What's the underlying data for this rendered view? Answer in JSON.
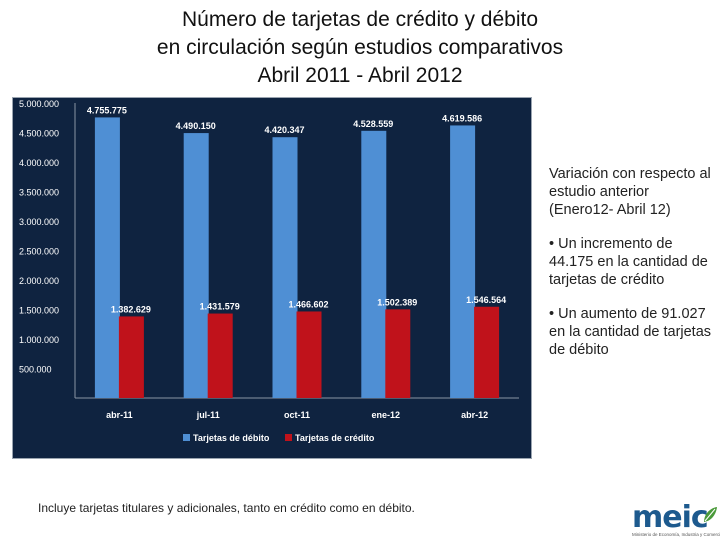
{
  "title_lines": [
    "Número de tarjetas de crédito y débito",
    "en circulación según estudios comparativos",
    "Abril 2011 - Abril 2012"
  ],
  "chart_data": {
    "type": "bar",
    "categories": [
      "abr-11",
      "jul-11",
      "oct-11",
      "ene-12",
      "abr-12"
    ],
    "series": [
      {
        "name": "Tarjetas de débito",
        "values": [
          4755775,
          4490150,
          4420347,
          4528559,
          4619586
        ],
        "labels": [
          "4.755.775",
          "4.490.150",
          "4.420.347",
          "4.528.559",
          "4.619.586"
        ],
        "color": "#4f8fd4"
      },
      {
        "name": "Tarjetas de crédito",
        "values": [
          1382629,
          1431579,
          1466602,
          1502389,
          1546564
        ],
        "labels": [
          "1.382.629",
          "1.431.579",
          "1.466.602",
          "1.502.389",
          "1.546.564"
        ],
        "color": "#c0121b"
      }
    ],
    "ylim": [
      0,
      5000000
    ],
    "yticks": [
      "500.000",
      "1.000.000",
      "1.500.000",
      "2.000.000",
      "2.500.000",
      "3.000.000",
      "3.500.000",
      "4.000.000",
      "4.500.000",
      "5.000.000"
    ],
    "legend": "bottom",
    "background": "#0f2340"
  },
  "sidebar": {
    "intro": "Variación con respecto al estudio anterior (Enero12- Abril 12)",
    "bullet1": "• Un incremento de 44.175 en la cantidad de tarjetas de crédito",
    "bullet2": "• Un aumento de 91.027 en la cantidad de tarjetas de débito"
  },
  "footnote": "Incluye tarjetas  titulares y adicionales, tanto en crédito como en débito.",
  "logo": {
    "word": "meic",
    "sub": "Ministerio de Economía, Industria y Comercio"
  }
}
